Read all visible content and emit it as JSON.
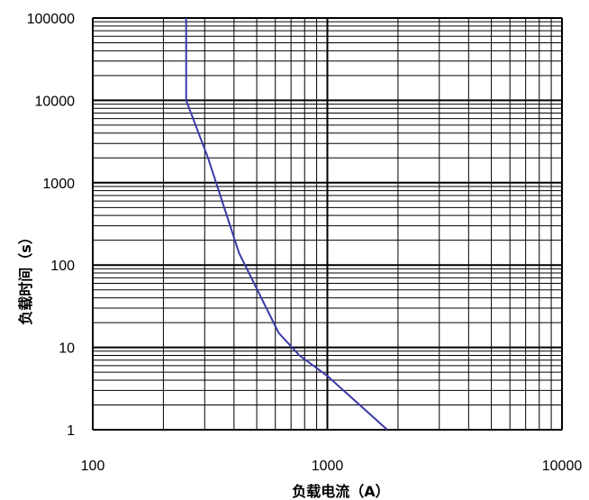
{
  "chart_data": {
    "type": "line",
    "title": "",
    "xlabel": "负载电流（A）",
    "ylabel": "负载时间（s）",
    "x_scale": "log",
    "y_scale": "log",
    "xlim": [
      100,
      10000
    ],
    "ylim": [
      1,
      100000
    ],
    "x_ticks": [
      "100",
      "1000",
      "10000"
    ],
    "y_ticks": [
      "1",
      "10",
      "100",
      "1000",
      "10000",
      "100000"
    ],
    "grid": true,
    "legend": "none",
    "series": [
      {
        "color": "#3a3aa8",
        "x": [
          250,
          250,
          310,
          420,
          620,
          760,
          1000,
          1800
        ],
        "y": [
          100000,
          10000,
          2000,
          140,
          15,
          8,
          4.5,
          1
        ]
      }
    ]
  }
}
